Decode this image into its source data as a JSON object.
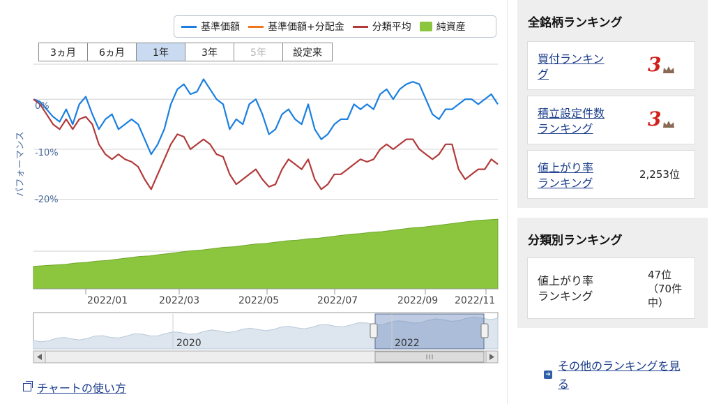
{
  "legend": [
    {
      "label": "基準価額",
      "color": "#1a7fe0",
      "kind": "line"
    },
    {
      "label": "基準価額+分配金",
      "color": "#f0751c",
      "kind": "line"
    },
    {
      "label": "分類平均",
      "color": "#b23a3a",
      "kind": "line"
    },
    {
      "label": "純資産",
      "color": "#8cc63f",
      "kind": "swatch"
    }
  ],
  "range_tabs": [
    {
      "label": "3ヵ月",
      "state": "normal"
    },
    {
      "label": "6ヵ月",
      "state": "normal"
    },
    {
      "label": "1年",
      "state": "active"
    },
    {
      "label": "3年",
      "state": "normal"
    },
    {
      "label": "5年",
      "state": "disabled"
    },
    {
      "label": "設定来",
      "state": "normal"
    }
  ],
  "y_axis_title": "パフォーマンス",
  "chart_data": {
    "type": "line",
    "x_ticks": [
      "2022/01",
      "2022/03",
      "2022/05",
      "2022/07",
      "2022/09",
      "2022/11"
    ],
    "y_ticks": [
      "0%",
      "-10%",
      "-20%"
    ],
    "ylim": [
      -22,
      7
    ],
    "series": [
      {
        "name": "基準価額",
        "color": "#1a7fe0",
        "values": [
          0,
          -0.5,
          -2,
          -3.5,
          -4.5,
          -2,
          -5,
          -1,
          0.5,
          -3,
          -6,
          -4,
          -3,
          -6,
          -5,
          -4,
          -5,
          -8,
          -11,
          -9,
          -6,
          -1,
          2,
          3,
          1,
          1.5,
          4,
          2,
          0,
          -1,
          -6,
          -4,
          -5,
          -1,
          0,
          -3,
          -7,
          -6,
          -3,
          -2,
          -4,
          -5,
          -1,
          -6,
          -8,
          -7,
          -5,
          -4,
          -4,
          -1,
          -2,
          -1,
          -2,
          1,
          2,
          0,
          2,
          3,
          3.5,
          3,
          0,
          -3,
          -4,
          -2,
          -2,
          -1,
          0,
          0,
          -1,
          0,
          1,
          -1
        ]
      },
      {
        "name": "分類平均",
        "color": "#b23a3a",
        "values": [
          0,
          -1,
          -3,
          -5,
          -6,
          -4,
          -6,
          -4,
          -3.5,
          -5,
          -9,
          -11,
          -12,
          -11,
          -12,
          -12.5,
          -13.5,
          -16,
          -18,
          -15,
          -12,
          -9,
          -7,
          -7.5,
          -10,
          -9,
          -8,
          -9,
          -11,
          -11.5,
          -15,
          -17,
          -16,
          -15,
          -14,
          -16,
          -17.5,
          -17,
          -14,
          -12,
          -13,
          -14,
          -12,
          -16,
          -18,
          -17,
          -15,
          -15,
          -14,
          -13,
          -12,
          -12.5,
          -12,
          -10,
          -9,
          -10,
          -9,
          -8,
          -8,
          -10,
          -11,
          -12,
          -11,
          -9,
          -9,
          -14,
          -16,
          -15,
          -14,
          -14,
          -12,
          -13
        ]
      }
    ],
    "net_assets": {
      "name": "純資産",
      "color": "#8cc63f",
      "values": [
        28,
        29,
        30,
        31,
        33,
        34,
        36,
        37,
        39,
        41,
        43,
        44,
        46,
        48,
        50,
        52,
        53,
        55,
        57,
        58,
        60,
        62,
        63,
        65,
        67,
        68,
        70,
        71,
        73,
        75,
        77,
        78,
        80,
        81,
        83,
        85,
        87,
        88,
        90,
        92,
        94,
        96,
        98,
        99,
        100
      ]
    },
    "navigator_years": [
      "2020",
      "2022"
    ]
  },
  "usage_link": "チャートの使い方",
  "all_ranking": {
    "title": "全銘柄ランキング",
    "items": [
      {
        "label_lines": [
          "買付ランキン",
          "グ"
        ],
        "value": "3"
      },
      {
        "label_lines": [
          "積立設定件数",
          "ランキング"
        ],
        "value": "3"
      },
      {
        "label_lines": [
          "値上がり率",
          "ランキング"
        ],
        "value": "2,253位"
      }
    ]
  },
  "category_ranking": {
    "title": "分類別ランキング",
    "label_lines": [
      "値上がり率",
      "ランキング"
    ],
    "value_lines": [
      "47位",
      "（70件",
      "中）"
    ]
  },
  "other_link_lines": [
    "その他のランキングを見",
    "る"
  ]
}
